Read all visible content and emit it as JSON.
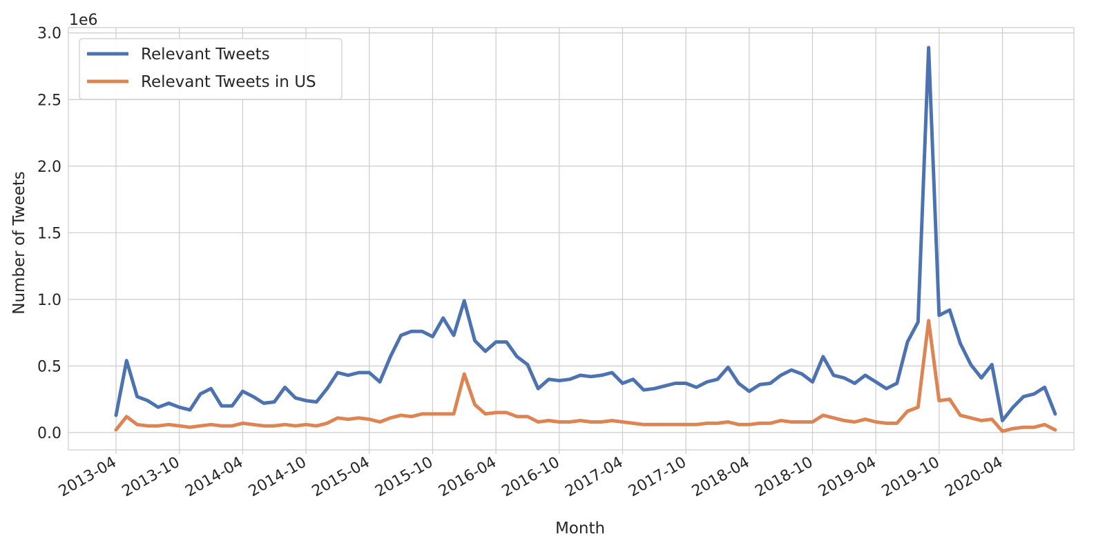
{
  "chart_data": {
    "type": "line",
    "title": "",
    "xlabel": "Month",
    "ylabel": "Number of Tweets",
    "y_offset_label": "1e6",
    "y_scale_factor": 1000000,
    "ylim": [
      -0.13,
      3.04
    ],
    "y_ticks": [
      "0.0",
      "0.5",
      "1.0",
      "1.5",
      "2.0",
      "2.5",
      "3.0"
    ],
    "x_ticks": [
      "2013-04",
      "2013-10",
      "2014-04",
      "2014-10",
      "2015-04",
      "2015-10",
      "2016-04",
      "2016-10",
      "2017-04",
      "2017-10",
      "2018-04",
      "2018-10",
      "2019-04",
      "2019-10",
      "2020-04"
    ],
    "grid": true,
    "legend_position": "top-left",
    "series": [
      {
        "name": "Relevant Tweets",
        "color": "#4c72b0",
        "values": [
          0.13,
          0.54,
          0.27,
          0.24,
          0.19,
          0.22,
          0.19,
          0.17,
          0.29,
          0.33,
          0.2,
          0.2,
          0.31,
          0.27,
          0.22,
          0.23,
          0.34,
          0.26,
          0.24,
          0.23,
          0.33,
          0.45,
          0.43,
          0.45,
          0.45,
          0.38,
          0.57,
          0.73,
          0.76,
          0.76,
          0.72,
          0.86,
          0.73,
          0.99,
          0.69,
          0.61,
          0.68,
          0.68,
          0.57,
          0.51,
          0.33,
          0.4,
          0.39,
          0.4,
          0.43,
          0.42,
          0.43,
          0.45,
          0.37,
          0.4,
          0.32,
          0.33,
          0.35,
          0.37,
          0.37,
          0.34,
          0.38,
          0.4,
          0.49,
          0.37,
          0.31,
          0.36,
          0.37,
          0.43,
          0.47,
          0.44,
          0.38,
          0.57,
          0.43,
          0.41,
          0.37,
          0.43,
          0.38,
          0.33,
          0.37,
          0.68,
          0.83,
          2.89,
          0.88,
          0.92,
          0.67,
          0.51,
          0.41,
          0.51,
          0.09,
          0.19,
          0.27,
          0.29,
          0.34,
          0.14
        ]
      },
      {
        "name": "Relevant Tweets in US",
        "color": "#dd8452",
        "values": [
          0.02,
          0.12,
          0.06,
          0.05,
          0.05,
          0.06,
          0.05,
          0.04,
          0.05,
          0.06,
          0.05,
          0.05,
          0.07,
          0.06,
          0.05,
          0.05,
          0.06,
          0.05,
          0.06,
          0.05,
          0.07,
          0.11,
          0.1,
          0.11,
          0.1,
          0.08,
          0.11,
          0.13,
          0.12,
          0.14,
          0.14,
          0.14,
          0.14,
          0.44,
          0.21,
          0.14,
          0.15,
          0.15,
          0.12,
          0.12,
          0.08,
          0.09,
          0.08,
          0.08,
          0.09,
          0.08,
          0.08,
          0.09,
          0.08,
          0.07,
          0.06,
          0.06,
          0.06,
          0.06,
          0.06,
          0.06,
          0.07,
          0.07,
          0.08,
          0.06,
          0.06,
          0.07,
          0.07,
          0.09,
          0.08,
          0.08,
          0.08,
          0.13,
          0.11,
          0.09,
          0.08,
          0.1,
          0.08,
          0.07,
          0.07,
          0.16,
          0.19,
          0.84,
          0.24,
          0.25,
          0.13,
          0.11,
          0.09,
          0.1,
          0.01,
          0.03,
          0.04,
          0.04,
          0.06,
          0.02
        ]
      }
    ]
  }
}
